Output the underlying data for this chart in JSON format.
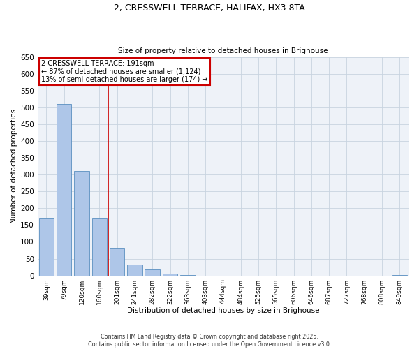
{
  "title_line1": "2, CRESSWELL TERRACE, HALIFAX, HX3 8TA",
  "title_line2": "Size of property relative to detached houses in Brighouse",
  "xlabel": "Distribution of detached houses by size in Brighouse",
  "ylabel": "Number of detached properties",
  "bar_color": "#aec6e8",
  "bar_edge_color": "#5a8fc0",
  "categories": [
    "39sqm",
    "79sqm",
    "120sqm",
    "160sqm",
    "201sqm",
    "241sqm",
    "282sqm",
    "322sqm",
    "363sqm",
    "403sqm",
    "444sqm",
    "484sqm",
    "525sqm",
    "565sqm",
    "606sqm",
    "646sqm",
    "687sqm",
    "727sqm",
    "768sqm",
    "808sqm",
    "849sqm"
  ],
  "values": [
    170,
    510,
    310,
    170,
    80,
    32,
    17,
    5,
    2,
    0,
    0,
    0,
    0,
    0,
    0,
    0,
    0,
    0,
    0,
    0,
    2
  ],
  "ylim": [
    0,
    650
  ],
  "yticks": [
    0,
    50,
    100,
    150,
    200,
    250,
    300,
    350,
    400,
    450,
    500,
    550,
    600,
    650
  ],
  "vline_index": 3.5,
  "marker_label": "2 CRESSWELL TERRACE: 191sqm",
  "annotation_line1": "← 87% of detached houses are smaller (1,124)",
  "annotation_line2": "13% of semi-detached houses are larger (174) →",
  "vline_color": "#cc0000",
  "annotation_box_color": "#cc0000",
  "grid_color": "#c8d4e0",
  "background_color": "#eef2f8",
  "footer_line1": "Contains HM Land Registry data © Crown copyright and database right 2025.",
  "footer_line2": "Contains public sector information licensed under the Open Government Licence v3.0."
}
